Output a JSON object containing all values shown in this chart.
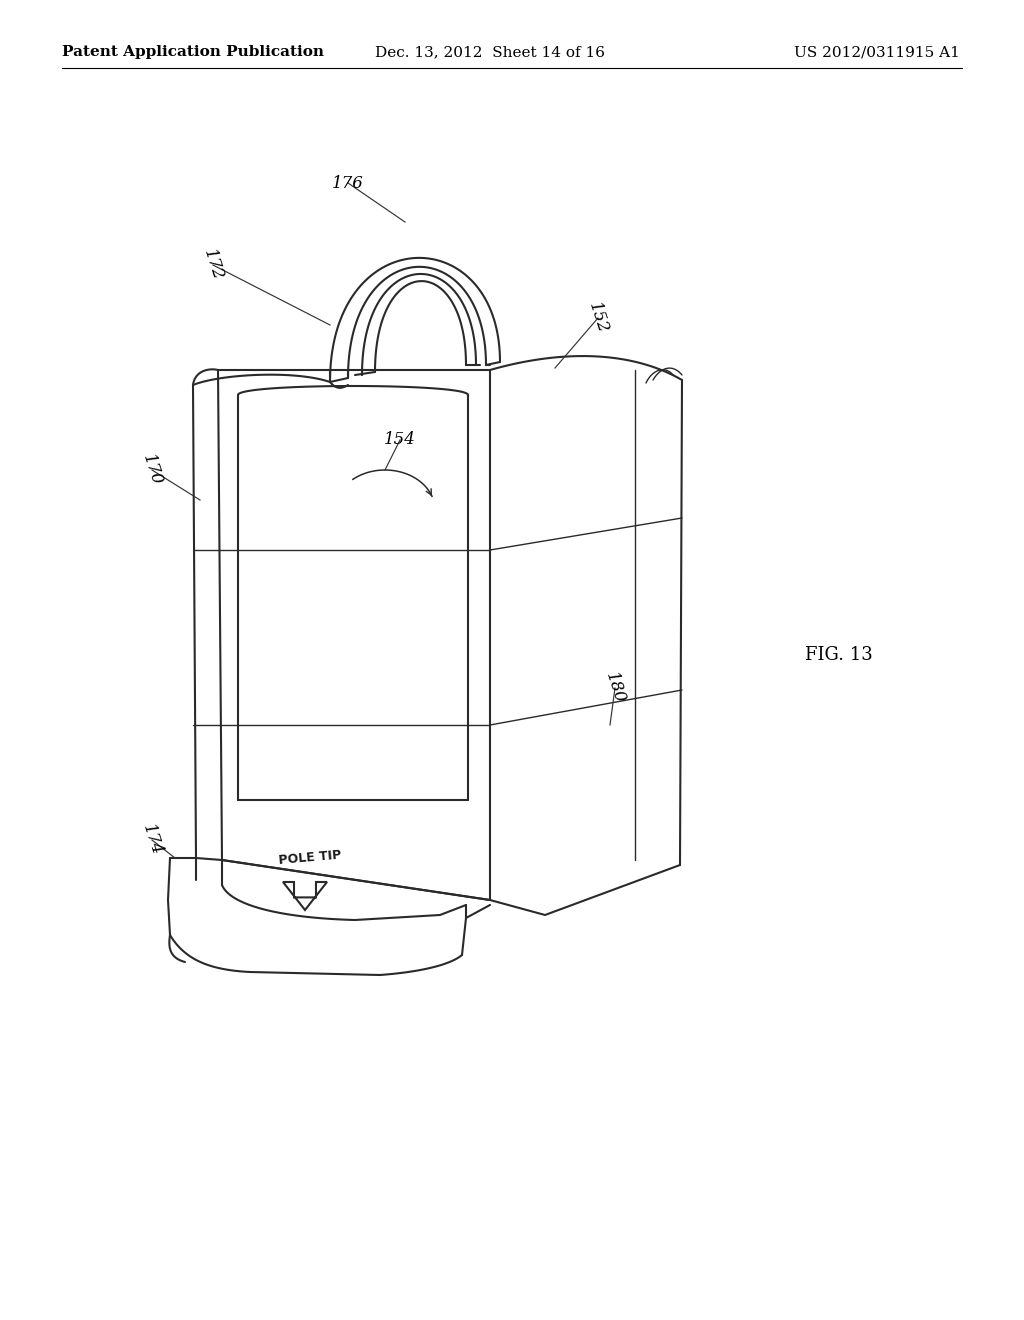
{
  "background_color": "#ffffff",
  "header_left": "Patent Application Publication",
  "header_center": "Dec. 13, 2012  Sheet 14 of 16",
  "header_right": "US 2012/0311915 A1",
  "fig_label": "FIG. 13",
  "line_color": "#2a2a2a",
  "lw_main": 1.5,
  "lw_thin": 1.0,
  "lw_leader": 0.85,
  "header_fontsize": 11,
  "label_fontsize": 12
}
